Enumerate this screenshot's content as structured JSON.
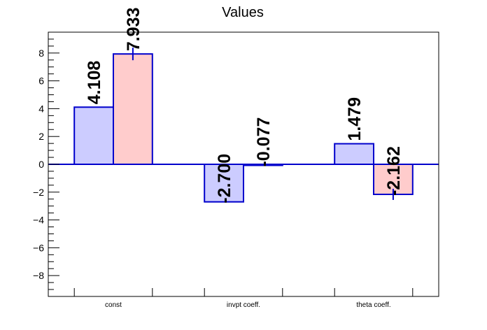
{
  "chart_data": {
    "type": "bar",
    "title": "Values",
    "xlabel": "",
    "ylabel": "",
    "categories": [
      "const",
      "invpt coeff.",
      "theta coeff."
    ],
    "ylim": [
      -9.5,
      9.5
    ],
    "yticks": [
      -8,
      -6,
      -4,
      -2,
      0,
      2,
      4,
      6,
      8
    ],
    "yticks_labels": [
      "−8",
      "−6",
      "−4",
      "−2",
      "0",
      "2",
      "4",
      "6",
      "8"
    ],
    "grid": false,
    "legend": "none",
    "series": [
      {
        "values": [
          4.108,
          -2.7,
          1.479
        ],
        "labels": [
          "4.108",
          "-2.700",
          "1.479"
        ],
        "errors": [
          0,
          0,
          0
        ],
        "fill": "#ccccff",
        "stroke": "#0000cc"
      },
      {
        "values": [
          7.933,
          -0.077,
          -2.162
        ],
        "labels": [
          "7.933",
          "-0.077",
          "-2.162"
        ],
        "errors": [
          0.45,
          0.05,
          0.4
        ],
        "fill": "#ffcccc",
        "stroke": "#0000cc"
      }
    ]
  }
}
